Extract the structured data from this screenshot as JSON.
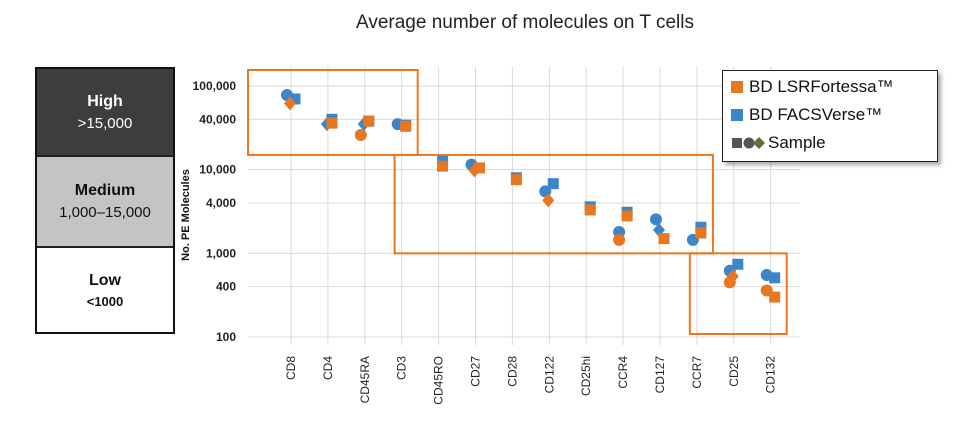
{
  "title": "Average number of molecules on T cells",
  "tiers": [
    {
      "name": "High",
      "range": ">15,000"
    },
    {
      "name": "Medium",
      "range": "1,000–15,000"
    },
    {
      "name": "Low",
      "range": "<1000"
    }
  ],
  "legend": {
    "fortessa": "BD LSRFortessa™",
    "facsverse": "BD FACSVerse™",
    "sample": "Sample"
  },
  "colors": {
    "fortessa": "#e87722",
    "facsverse": "#3a86c8",
    "box": "#e87722",
    "grid": "#d9d9d9"
  },
  "chart_data": {
    "type": "scatter",
    "title": "Average number of molecules on T cells",
    "ylabel": "No. PE Molecules",
    "y_scale": "log",
    "ylim": [
      100,
      100000
    ],
    "y_ticks": [
      100000,
      40000,
      10000,
      4000,
      1000,
      400,
      100
    ],
    "y_tick_labels": [
      "100,000",
      "40,000",
      "10,000",
      "4,000",
      "1,000",
      "400",
      "100"
    ],
    "categories": [
      "CD8",
      "CD4",
      "CD45RA",
      "CD3",
      "CD45RO",
      "CD27",
      "CD28",
      "CD122",
      "CD25hi",
      "CCR4",
      "CD127",
      "CCR7",
      "CD25",
      "CD132"
    ],
    "series": [
      {
        "name": "BD LSRFortessa™",
        "points": [
          {
            "x": "CD8",
            "marker": "diamond",
            "y": 62000
          },
          {
            "x": "CD4",
            "marker": "square",
            "y": 36000
          },
          {
            "x": "CD45RA",
            "marker": "square",
            "y": 38000
          },
          {
            "x": "CD45RA",
            "marker": "circle",
            "y": 26000
          },
          {
            "x": "CD3",
            "marker": "square",
            "y": 33000
          },
          {
            "x": "CD45RO",
            "marker": "square",
            "y": 11000
          },
          {
            "x": "CD27",
            "marker": "square",
            "y": 10500
          },
          {
            "x": "CD27",
            "marker": "diamond",
            "y": 9800
          },
          {
            "x": "CD28",
            "marker": "square",
            "y": 7600
          },
          {
            "x": "CD122",
            "marker": "diamond",
            "y": 4300
          },
          {
            "x": "CD25hi",
            "marker": "square",
            "y": 3300
          },
          {
            "x": "CCR4",
            "marker": "square",
            "y": 2800
          },
          {
            "x": "CCR4",
            "marker": "circle",
            "y": 1450
          },
          {
            "x": "CD127",
            "marker": "square",
            "y": 1500
          },
          {
            "x": "CCR7",
            "marker": "square",
            "y": 1750
          },
          {
            "x": "CD25",
            "marker": "circle",
            "y": 450
          },
          {
            "x": "CD25",
            "marker": "diamond",
            "y": 530
          },
          {
            "x": "CD132",
            "marker": "square",
            "y": 300
          },
          {
            "x": "CD132",
            "marker": "circle",
            "y": 360
          }
        ]
      },
      {
        "name": "BD FACSVerse™",
        "points": [
          {
            "x": "CD8",
            "marker": "circle",
            "y": 78000
          },
          {
            "x": "CD8",
            "marker": "square",
            "y": 70000
          },
          {
            "x": "CD4",
            "marker": "square",
            "y": 40000
          },
          {
            "x": "CD4",
            "marker": "diamond",
            "y": 35000
          },
          {
            "x": "CD45RA",
            "marker": "diamond",
            "y": 35000
          },
          {
            "x": "CD45RA",
            "marker": "square",
            "y": 38000
          },
          {
            "x": "CD3",
            "marker": "circle",
            "y": 35000
          },
          {
            "x": "CD3",
            "marker": "square",
            "y": 34000
          },
          {
            "x": "CD45RO",
            "marker": "square",
            "y": 13000
          },
          {
            "x": "CD27",
            "marker": "circle",
            "y": 11500
          },
          {
            "x": "CD28",
            "marker": "square",
            "y": 8000
          },
          {
            "x": "CD122",
            "marker": "circle",
            "y": 5500
          },
          {
            "x": "CD122",
            "marker": "square",
            "y": 6800
          },
          {
            "x": "CD25hi",
            "marker": "square",
            "y": 3600
          },
          {
            "x": "CCR4",
            "marker": "square",
            "y": 3100
          },
          {
            "x": "CCR4",
            "marker": "circle",
            "y": 1800
          },
          {
            "x": "CD127",
            "marker": "circle",
            "y": 2550
          },
          {
            "x": "CD127",
            "marker": "diamond",
            "y": 1900
          },
          {
            "x": "CCR7",
            "marker": "circle",
            "y": 1450
          },
          {
            "x": "CCR7",
            "marker": "square",
            "y": 2050
          },
          {
            "x": "CD25",
            "marker": "circle",
            "y": 620
          },
          {
            "x": "CD25",
            "marker": "square",
            "y": 740
          },
          {
            "x": "CD132",
            "marker": "circle",
            "y": 550
          },
          {
            "x": "CD132",
            "marker": "square",
            "y": 510
          }
        ]
      }
    ],
    "regions": [
      {
        "label": "High",
        "from": "CD8",
        "to": "CD3",
        "ymin": 15000,
        "ymax": 100000
      },
      {
        "label": "Medium",
        "from": "CD45RO",
        "to": "CCR7",
        "ymin": 1000,
        "ymax": 15000
      },
      {
        "label": "Low",
        "from": "CD25",
        "to": "CD132",
        "ymin": 100,
        "ymax": 1000
      }
    ],
    "grid": true,
    "legend_position": "top-right"
  }
}
